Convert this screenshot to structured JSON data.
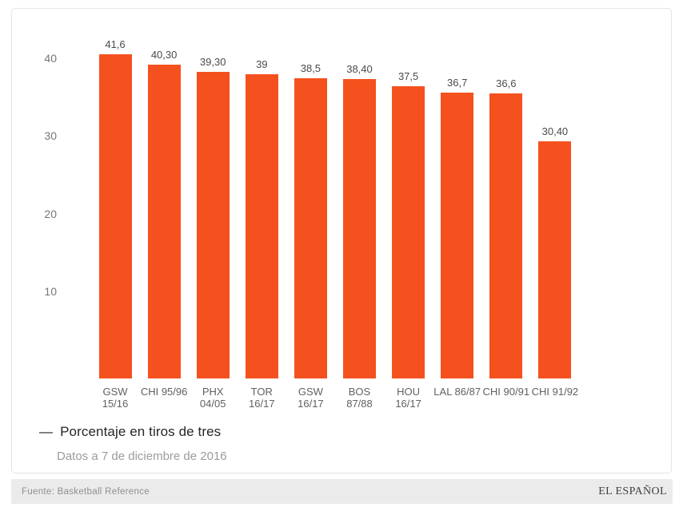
{
  "chart_data": {
    "type": "bar",
    "title": "Porcentaje en tiros de tres",
    "subtitle": "Datos a 7 de diciembre de 2016",
    "legend_marker": "—",
    "legend_label": "Porcentaje en tiros de tres",
    "legend_position": "bottom-left",
    "grid": false,
    "bar_color": "#f4511e",
    "categories": [
      "GSW 15/16",
      "CHI 95/96",
      "PHX 04/05",
      "TOR 16/17",
      "GSW 16/17",
      "BOS 87/88",
      "HOU 16/17",
      "LAL 86/87",
      "CHI 90/91",
      "CHI 91/92"
    ],
    "category_label_lines": [
      [
        "GSW",
        "15/16"
      ],
      [
        "CHI 95/96"
      ],
      [
        "PHX",
        "04/05"
      ],
      [
        "TOR",
        "16/17"
      ],
      [
        "GSW",
        "16/17"
      ],
      [
        "BOS",
        "87/88"
      ],
      [
        "HOU",
        "16/17"
      ],
      [
        "LAL 86/87"
      ],
      [
        "CHI 90/91"
      ],
      [
        "CHI 91/92"
      ]
    ],
    "values": [
      41.6,
      40.3,
      39.3,
      39,
      38.5,
      38.4,
      37.5,
      36.7,
      36.6,
      30.4
    ],
    "value_labels": [
      "41,6",
      "40,30",
      "39,30",
      "39",
      "38,5",
      "38,40",
      "37,5",
      "36,7",
      "36,6",
      "30,40"
    ],
    "yticks": [
      40,
      30,
      20,
      10
    ],
    "ytick_labels": [
      "40",
      "30",
      "20",
      "10"
    ],
    "ylim": [
      0,
      44
    ],
    "xlabel": "",
    "ylabel": ""
  },
  "footer": {
    "source": "Fuente: Basketball Reference",
    "brand": "EL ESPAÑOL"
  }
}
